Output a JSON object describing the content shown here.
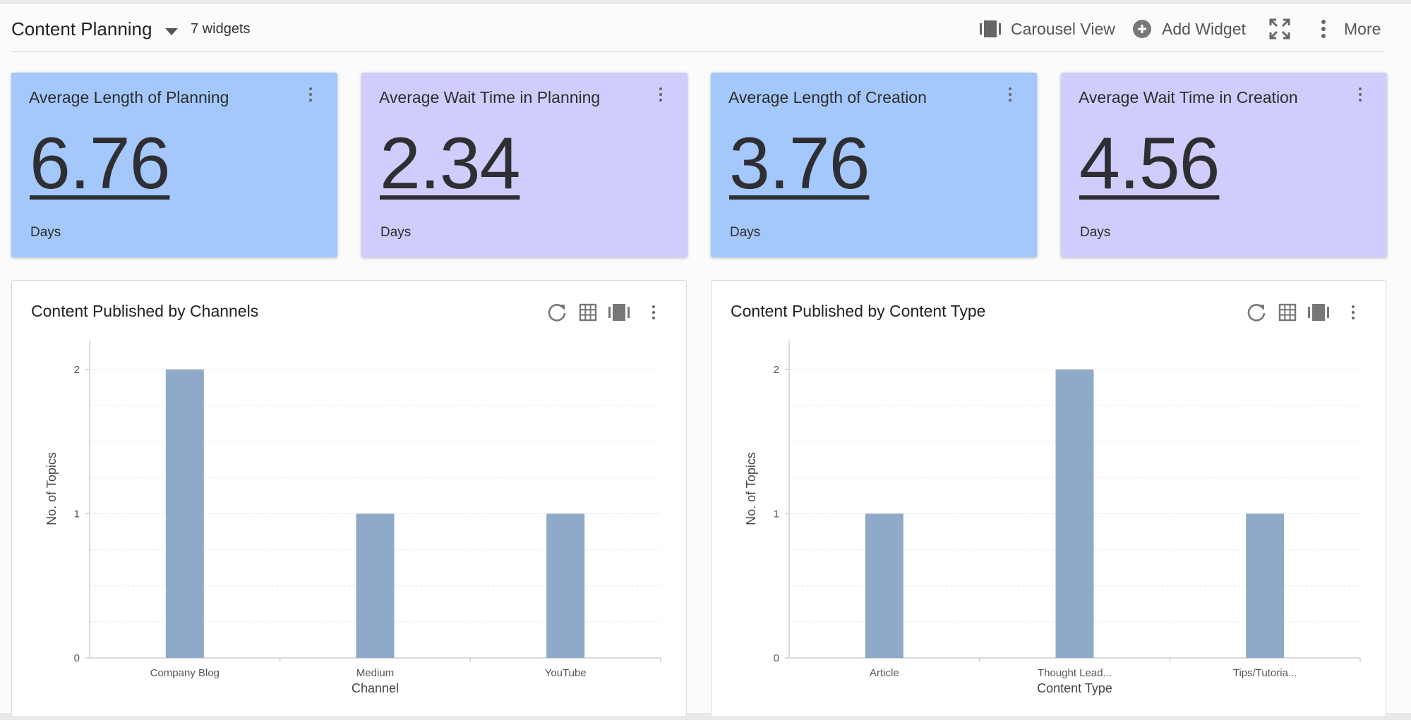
{
  "header": {
    "title": "Content Planning",
    "widget_count": "7 widgets",
    "carousel_label": "Carousel View",
    "add_widget_label": "Add Widget",
    "more_label": "More"
  },
  "cards": [
    {
      "title": "Average Length of Planning",
      "value": "6.76",
      "unit": "Days",
      "color": "#a4c8fb"
    },
    {
      "title": "Average Wait Time in Planning",
      "value": "2.34",
      "unit": "Days",
      "color": "#d0cdfc"
    },
    {
      "title": "Average Length of Creation",
      "value": "3.76",
      "unit": "Days",
      "color": "#a4c8fb"
    },
    {
      "title": "Average Wait Time in Creation",
      "value": "4.56",
      "unit": "Days",
      "color": "#d0cdfc"
    }
  ],
  "panels": [
    {
      "title": "Content Published by Channels"
    },
    {
      "title": "Content Published by Content Type"
    }
  ],
  "chart_data": [
    {
      "type": "bar",
      "title": "Content Published by Channels",
      "categories": [
        "Company Blog",
        "Medium",
        "YouTube"
      ],
      "values": [
        2,
        1,
        1
      ],
      "xlabel": "Channel",
      "ylabel": "No. of Topics",
      "ylim": [
        0,
        2.2
      ],
      "yticks": [
        "0",
        "1",
        "2"
      ],
      "grid": true,
      "bar_color": "#8fa9c8"
    },
    {
      "type": "bar",
      "title": "Content Published by Content Type",
      "categories": [
        "Article",
        "Thought Lead...",
        "Tips/Tutoria..."
      ],
      "values": [
        1,
        2,
        1
      ],
      "xlabel": "Content Type",
      "ylabel": "No. of Topics",
      "ylim": [
        0,
        2.2
      ],
      "yticks": [
        "0",
        "1",
        "2"
      ],
      "grid": true,
      "bar_color": "#8fa9c8"
    }
  ]
}
